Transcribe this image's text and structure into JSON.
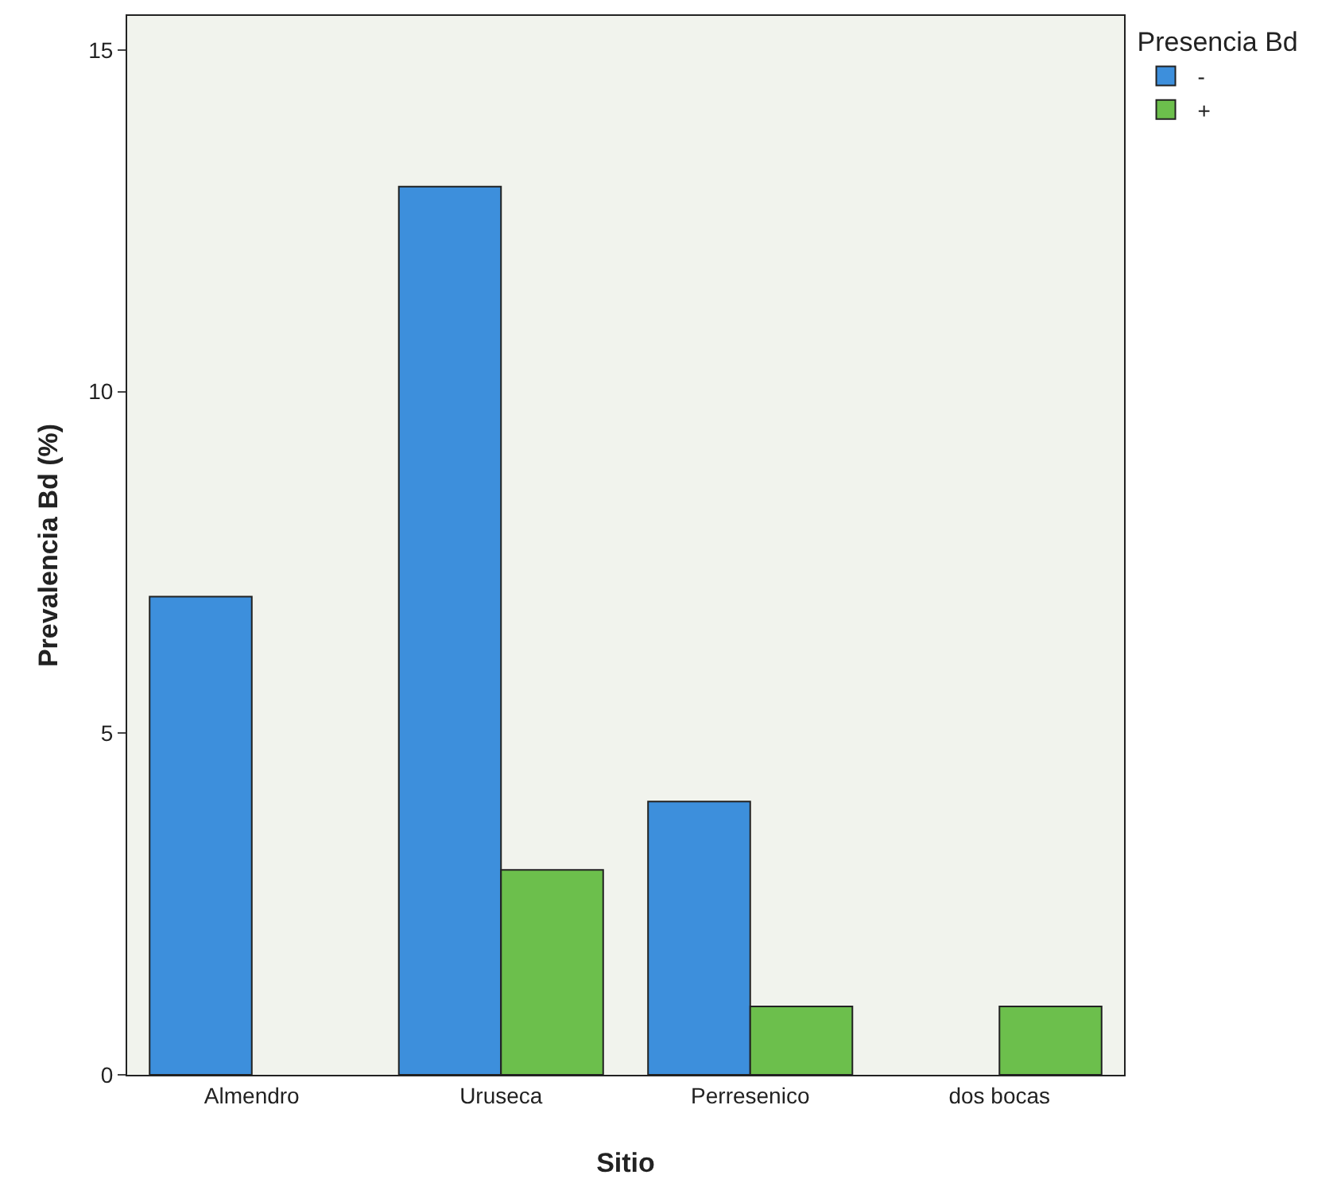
{
  "chart_data": {
    "type": "bar",
    "xlabel": "Sitio",
    "ylabel": "Prevalencia Bd (%)",
    "legend_title": "Presencia Bd",
    "categories": [
      "Almendro",
      "Uruseca",
      "Perresenico",
      "dos bocas"
    ],
    "series": [
      {
        "name": "-",
        "color": "#3d8fdc",
        "values": [
          7,
          13,
          4,
          null
        ]
      },
      {
        "name": "+",
        "color": "#6cbf4c",
        "values": [
          null,
          3,
          1,
          1
        ]
      }
    ],
    "ylim": [
      0,
      15.5
    ],
    "yticks": [
      0,
      5,
      10,
      15
    ],
    "grid": false,
    "legend": "top right"
  }
}
